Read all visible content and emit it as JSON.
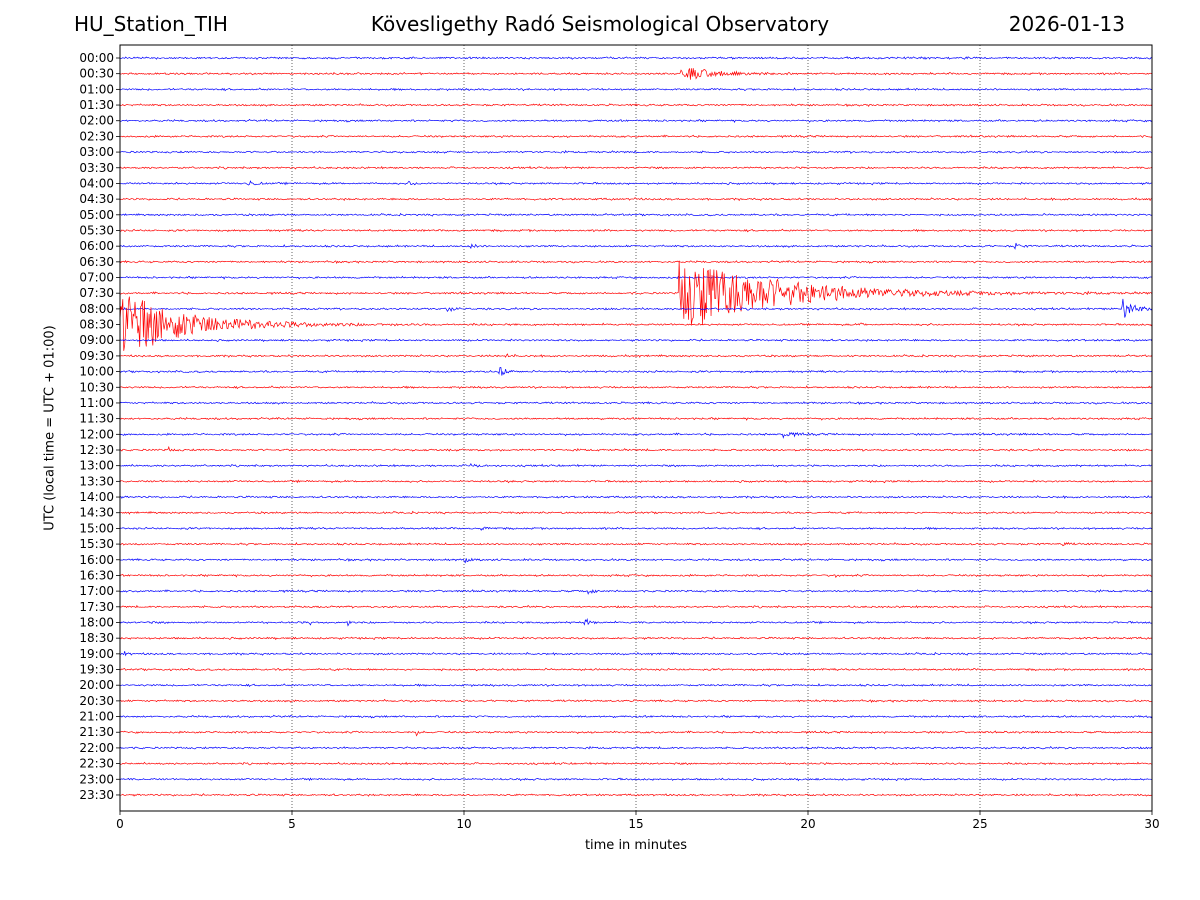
{
  "header": {
    "station": "HU_Station_TIH",
    "observatory": "Kövesligethy Radó Seismological Observatory",
    "date": "2026-01-13"
  },
  "colors": {
    "odd_rows": "#ff0000",
    "even_rows": "#0000ff",
    "frame": "#000000",
    "grid": "#000000"
  },
  "chart_data": {
    "type": "line",
    "title": "Kövesligethy Radó Seismological Observatory",
    "xlabel": "time in minutes",
    "ylabel": "UTC (local time = UTC + 01:00)",
    "xlim": [
      0,
      30
    ],
    "xticks": [
      0,
      5,
      10,
      15,
      20,
      25,
      30
    ],
    "grid": "vertical dotted lines at 5-minute ticks",
    "rows": [
      "00:00",
      "00:30",
      "01:00",
      "01:30",
      "02:00",
      "02:30",
      "03:00",
      "03:30",
      "04:00",
      "04:30",
      "05:00",
      "05:30",
      "06:00",
      "06:30",
      "07:00",
      "07:30",
      "08:00",
      "08:30",
      "09:00",
      "09:30",
      "10:00",
      "10:30",
      "11:00",
      "11:30",
      "12:00",
      "12:30",
      "13:00",
      "13:30",
      "14:00",
      "14:30",
      "15:00",
      "15:30",
      "16:00",
      "16:30",
      "17:00",
      "17:30",
      "18:00",
      "18:30",
      "19:00",
      "19:30",
      "20:00",
      "20:30",
      "21:00",
      "21:30",
      "22:00",
      "22:30",
      "23:00",
      "23:30"
    ],
    "events": [
      {
        "row": "00:30",
        "t": 16.3,
        "amplitude": 0.7,
        "duration": 2.5
      },
      {
        "row": "04:00",
        "t": 3.7,
        "amplitude": 0.3,
        "duration": 0.6
      },
      {
        "row": "04:00",
        "t": 8.4,
        "amplitude": 0.2,
        "duration": 0.4
      },
      {
        "row": "04:30",
        "t": 14.9,
        "amplitude": 0.3,
        "duration": 0.2
      },
      {
        "row": "06:00",
        "t": 10.2,
        "amplitude": 0.35,
        "duration": 0.3
      },
      {
        "row": "06:00",
        "t": 26.0,
        "amplitude": 0.35,
        "duration": 0.4
      },
      {
        "row": "07:30",
        "t": 16.25,
        "amplitude": 3.7,
        "duration": 8.0
      },
      {
        "row": "08:00",
        "t": 9.4,
        "amplitude": 0.35,
        "duration": 0.6
      },
      {
        "row": "08:00",
        "t": 29.1,
        "amplitude": 1.3,
        "duration": 0.9
      },
      {
        "row": "08:30",
        "t": 0.0,
        "amplitude": 3.2,
        "duration": 5.5
      },
      {
        "row": "08:30",
        "t": 21.5,
        "amplitude": 0.3,
        "duration": 0.2
      },
      {
        "row": "09:30",
        "t": 11.2,
        "amplitude": 0.4,
        "duration": 0.3
      },
      {
        "row": "10:00",
        "t": 11.0,
        "amplitude": 0.7,
        "duration": 0.5
      },
      {
        "row": "12:00",
        "t": 19.2,
        "amplitude": 0.35,
        "duration": 0.9
      },
      {
        "row": "12:30",
        "t": 1.4,
        "amplitude": 0.25,
        "duration": 0.3
      },
      {
        "row": "13:00",
        "t": 10.2,
        "amplitude": 0.3,
        "duration": 0.5
      },
      {
        "row": "15:00",
        "t": 10.5,
        "amplitude": 0.25,
        "duration": 0.3
      },
      {
        "row": "15:30",
        "t": 27.4,
        "amplitude": 0.25,
        "duration": 0.3
      },
      {
        "row": "16:00",
        "t": 10.0,
        "amplitude": 0.3,
        "duration": 0.4
      },
      {
        "row": "16:30",
        "t": 20.8,
        "amplitude": 0.25,
        "duration": 0.1
      },
      {
        "row": "17:00",
        "t": 13.6,
        "amplitude": 0.35,
        "duration": 0.4
      },
      {
        "row": "18:00",
        "t": 0.8,
        "amplitude": 0.25,
        "duration": 0.2
      },
      {
        "row": "18:00",
        "t": 5.5,
        "amplitude": 0.3,
        "duration": 0.2
      },
      {
        "row": "18:00",
        "t": 6.6,
        "amplitude": 0.35,
        "duration": 0.2
      },
      {
        "row": "18:00",
        "t": 13.5,
        "amplitude": 0.55,
        "duration": 0.3
      },
      {
        "row": "18:30",
        "t": 25.3,
        "amplitude": 0.35,
        "duration": 0.2
      },
      {
        "row": "19:00",
        "t": 0.1,
        "amplitude": 0.35,
        "duration": 0.2
      },
      {
        "row": "21:30",
        "t": 8.6,
        "amplitude": 0.35,
        "duration": 0.2
      },
      {
        "row": "22:00",
        "t": 19.8,
        "amplitude": 0.2,
        "duration": 0.4
      }
    ]
  }
}
